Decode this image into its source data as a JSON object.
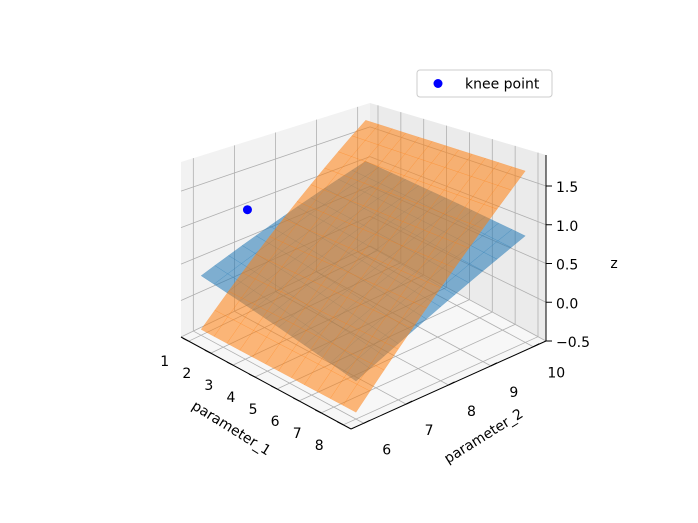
{
  "chart_data": {
    "type": "surface3d",
    "title": "",
    "xlabel": "parameter_1",
    "ylabel": "parameter_2",
    "zlabel": "z",
    "xlim": [
      0.65,
      8.35
    ],
    "ylim": [
      5.7,
      10.3
    ],
    "zlim": [
      -0.5,
      1.9
    ],
    "x_ticks": [
      1,
      2,
      3,
      4,
      5,
      6,
      7,
      8
    ],
    "y_ticks": [
      6,
      7,
      8,
      9,
      10
    ],
    "z_ticks": [
      -0.5,
      0.0,
      0.5,
      1.0,
      1.5
    ],
    "z_tick_labels": [
      "−0.5",
      "0.0",
      "0.5",
      "1.0",
      "1.5"
    ],
    "grid": true,
    "legend": {
      "position": "upper-right",
      "entries": [
        {
          "label": "knee point",
          "color": "#0000ff",
          "marker": "circle"
        }
      ]
    },
    "surfaces": [
      {
        "color": "#1f77b4",
        "corners": [
          {
            "x": 1,
            "y": 6,
            "z": 0.32
          },
          {
            "x": 8,
            "y": 6,
            "z": -0.05
          },
          {
            "x": 8,
            "y": 10,
            "z": 0.88
          },
          {
            "x": 1,
            "y": 10,
            "z": 1.05
          }
        ]
      },
      {
        "color": "#ff7f0e",
        "corners": [
          {
            "x": 1,
            "y": 6,
            "z": -0.42
          },
          {
            "x": 8,
            "y": 6,
            "z": -0.42
          },
          {
            "x": 8,
            "y": 10,
            "z": 1.72
          },
          {
            "x": 1,
            "y": 10,
            "z": 1.72
          }
        ]
      }
    ],
    "points": [
      {
        "name": "knee point",
        "x": 1.05,
        "y": 7.1,
        "z": 1.0,
        "color": "#0000ff"
      }
    ]
  }
}
